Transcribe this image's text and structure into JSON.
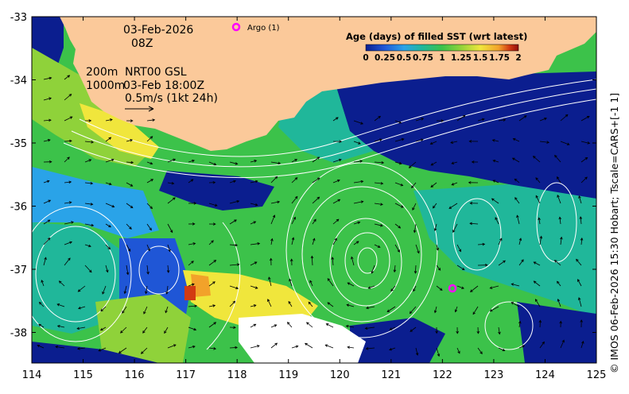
{
  "header": {
    "date": "03-Feb-2026",
    "time": "08Z",
    "depth_200": "200m",
    "depth_1000": "1000m",
    "product": "NRT00 GSL",
    "product_time": "03-Feb 18:00Z",
    "velocity_scale": "0.5m/s (1kt 24h)"
  },
  "argo_legend": "Argo (1)",
  "colorbar": {
    "title": "Age (days) of filled SST (wrt latest)",
    "tick_labels": [
      "0",
      "0.25",
      "0.5",
      "0.75",
      "1",
      "1.25",
      "1.5",
      "1.75",
      "2"
    ],
    "colors": [
      "#0b1e8f",
      "#1f56d6",
      "#2aa3e8",
      "#20b79a",
      "#3cc24a",
      "#8fd23a",
      "#f0e63c",
      "#f2a22a",
      "#d23a12",
      "#8f0d0d"
    ]
  },
  "axes": {
    "x_ticks": [
      "114",
      "115",
      "116",
      "117",
      "118",
      "119",
      "120",
      "121",
      "122",
      "123",
      "124",
      "125"
    ],
    "y_ticks": [
      "-33",
      "-34",
      "-35",
      "-36",
      "-37",
      "-38"
    ]
  },
  "credit": "© IMOS 06-Feb-2026 15:30 Hobart; Tscale=CARS+[-1 1]",
  "colors": {
    "land": "#fbc99a",
    "no_data": "#ffffff",
    "argo": "#ff00ff",
    "contour": "#ffffff",
    "arrow": "#000000"
  }
}
